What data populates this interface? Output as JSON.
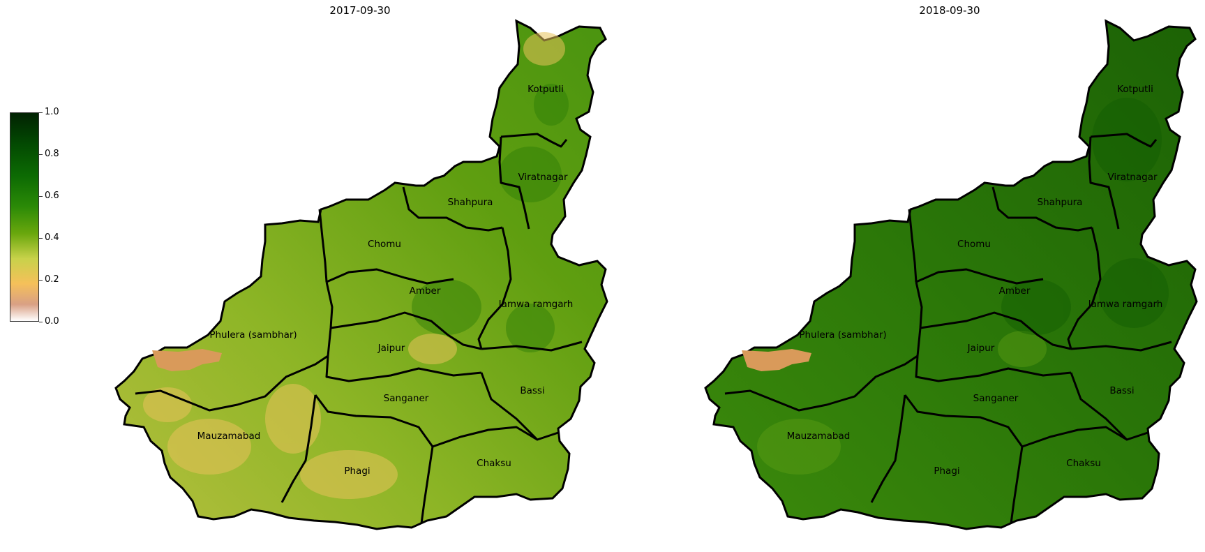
{
  "panels": [
    {
      "title": "2017-09-30"
    },
    {
      "title": "2018-09-30"
    }
  ],
  "colorbar": {
    "ticks": [
      "0.0",
      "0.2",
      "0.4",
      "0.6",
      "0.8",
      "1.0"
    ],
    "colors": [
      "#ffffff",
      "#d9a084",
      "#f5c05a",
      "#c8d24a",
      "#6aa70d",
      "#2b8a07",
      "#0c6a03",
      "#034a02",
      "#012202"
    ]
  },
  "districts": [
    "Kotputli",
    "Viratnagar",
    "Shahpura",
    "Chomu",
    "Amber",
    "Jamwa ramgarh",
    "Phulera (sambhar)",
    "Jaipur",
    "Sanganer",
    "Bassi",
    "Mauzamabad",
    "Phagi",
    "Chaksu"
  ],
  "colors": {
    "left_fill": "#7fb01c",
    "right_fill": "#2e7d0a",
    "boundary": "#000000",
    "salt_lake": "#d99a5a"
  }
}
